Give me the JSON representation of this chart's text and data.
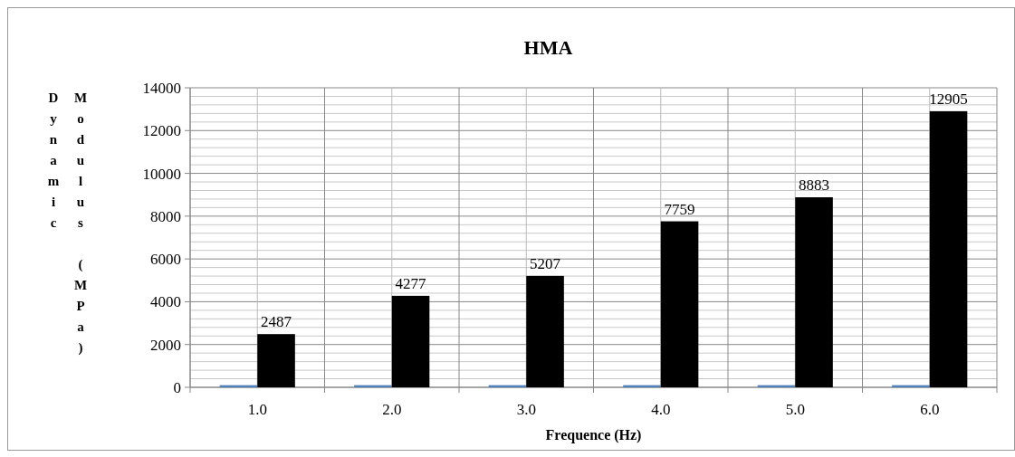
{
  "chart_data": {
    "type": "bar",
    "title": "HMA",
    "xlabel": "Frequence (Hz)",
    "ylabel": "Dynamic Modulus (MPa)",
    "categories": [
      "1.0",
      "2.0",
      "3.0",
      "4.0",
      "5.0",
      "6.0"
    ],
    "series": [
      {
        "color": "#4f81bd",
        "values": [
          100,
          100,
          100,
          100,
          100,
          100
        ]
      },
      {
        "color": "#000000",
        "values": [
          2487,
          4277,
          5207,
          7759,
          8883,
          12905
        ],
        "value_labels": [
          "2487",
          "4277",
          "5207",
          "7759",
          "8883",
          "12905"
        ]
      }
    ],
    "ylim": [
      0,
      14000
    ],
    "yticks": [
      0,
      2000,
      4000,
      6000,
      8000,
      10000,
      12000,
      14000
    ],
    "grid": true
  }
}
